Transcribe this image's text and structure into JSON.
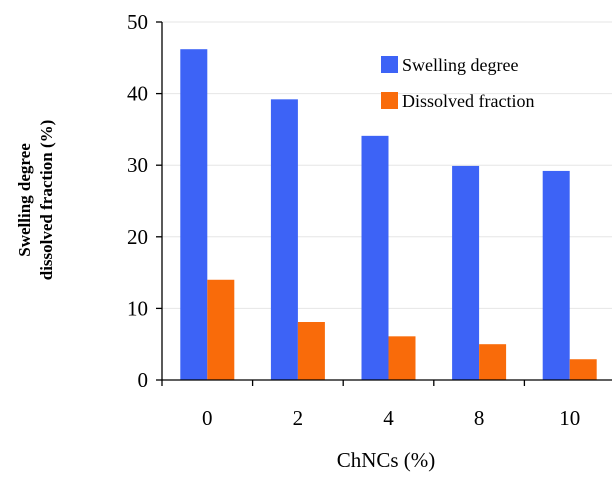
{
  "chart_data": {
    "type": "bar",
    "categories": [
      "0",
      "2",
      "4",
      "8",
      "10"
    ],
    "series": [
      {
        "name": "Swelling degree",
        "color": "#3d63f6",
        "values": [
          46.2,
          39.2,
          34.1,
          29.9,
          29.2
        ]
      },
      {
        "name": "Dissolved fraction",
        "color": "#f96b0a",
        "values": [
          14.0,
          8.1,
          6.1,
          5.0,
          2.9
        ]
      }
    ],
    "title": "",
    "xlabel": "ChNCs (%)",
    "ylabel_lines": [
      "Swelling degree",
      "dissolved fraction (%)"
    ],
    "ylim": [
      0,
      50
    ],
    "yticks": [
      0,
      10,
      20,
      30,
      40,
      50
    ],
    "grid": true,
    "legend_position": "top-right"
  }
}
